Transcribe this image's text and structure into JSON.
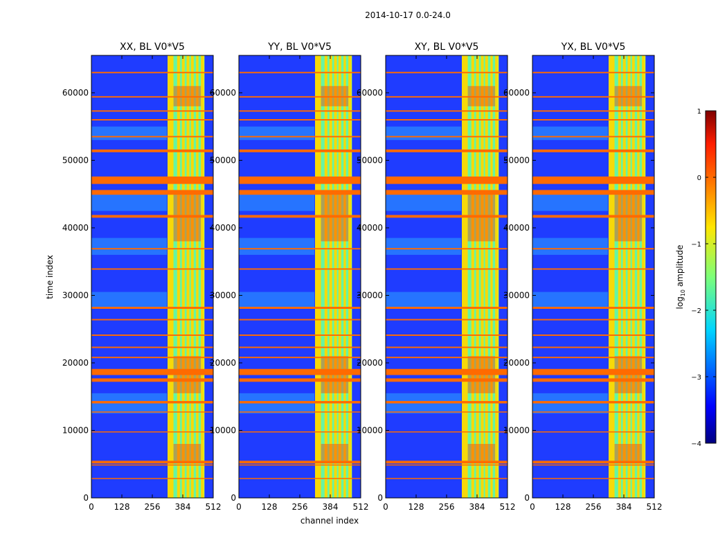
{
  "figure": {
    "suptitle": "2014-10-17 0.0-24.0",
    "xlabel": "channel index",
    "ylabel": "time index",
    "colorbar_label": "log",
    "colorbar_label_sub": "10",
    "colorbar_label_rest": " amplitude"
  },
  "chart_data": {
    "type": "heatmap",
    "colormap": "jet",
    "panels": [
      {
        "title": "XX, BL V0*V5",
        "id": "xx"
      },
      {
        "title": "YY, BL V0*V5",
        "id": "yy"
      },
      {
        "title": "XY, BL V0*V5",
        "id": "xy"
      },
      {
        "title": "YX, BL V0*V5",
        "id": "yx"
      }
    ],
    "xlim": [
      0,
      512
    ],
    "ylim": [
      0,
      65536
    ],
    "x_ticks": [
      0,
      128,
      256,
      384,
      512
    ],
    "y_ticks": [
      0,
      10000,
      20000,
      30000,
      40000,
      50000,
      60000
    ],
    "x_tick_labels": [
      "0",
      "128",
      "256",
      "384",
      "512"
    ],
    "y_tick_labels": [
      "0",
      "10000",
      "20000",
      "30000",
      "40000",
      "50000",
      "60000"
    ],
    "colorbar": {
      "range": [
        -4,
        1
      ],
      "ticks": [
        -4,
        -3,
        -2,
        -1,
        0,
        1
      ],
      "tick_labels": [
        "−4",
        "−3",
        "−2",
        "−1",
        "0",
        "1"
      ]
    },
    "flagged_time_bands": [
      [
        46500,
        47600
      ],
      [
        44900,
        45600
      ],
      [
        41500,
        41900
      ],
      [
        18200,
        19100
      ],
      [
        17200,
        17700
      ],
      [
        51200,
        51600
      ],
      [
        14000,
        14350
      ],
      [
        5100,
        5500
      ],
      [
        4800,
        4950
      ],
      [
        28000,
        28300
      ],
      [
        22200,
        22400
      ],
      [
        20700,
        20900
      ],
      [
        53400,
        53600
      ],
      [
        55900,
        56100
      ],
      [
        57200,
        57400
      ],
      [
        59300,
        59500
      ],
      [
        62900,
        63100
      ],
      [
        36800,
        37000
      ],
      [
        33800,
        34000
      ],
      [
        26300,
        26500
      ],
      [
        24000,
        24200
      ],
      [
        2800,
        2950
      ],
      [
        9700,
        9850
      ],
      [
        12700,
        12800
      ]
    ],
    "bright_channel_range": [
      320,
      475
    ],
    "bright_channel_stripes": [
      [
        320,
        345
      ],
      [
        360,
        372
      ],
      [
        380,
        392
      ],
      [
        400,
        412
      ],
      [
        418,
        430
      ],
      [
        440,
        450
      ],
      [
        460,
        472
      ]
    ]
  }
}
